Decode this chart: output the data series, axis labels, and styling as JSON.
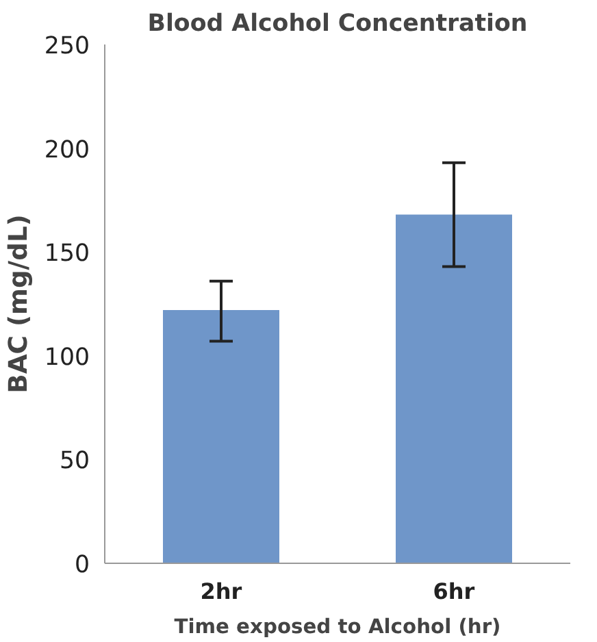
{
  "chart_data": {
    "type": "bar",
    "title": "Blood Alcohol Concentration",
    "xlabel": "Time exposed to Alcohol (hr)",
    "ylabel": "BAC (mg/dL)",
    "categories": [
      "2hr",
      "6hr"
    ],
    "values": [
      122,
      168
    ],
    "color": "#6f96c9",
    "errors": [
      [
        107,
        136
      ],
      [
        143,
        193
      ]
    ],
    "ylim": [
      0,
      250
    ],
    "yticks": [
      0,
      50,
      100,
      150,
      200,
      250
    ],
    "grid": false
  }
}
